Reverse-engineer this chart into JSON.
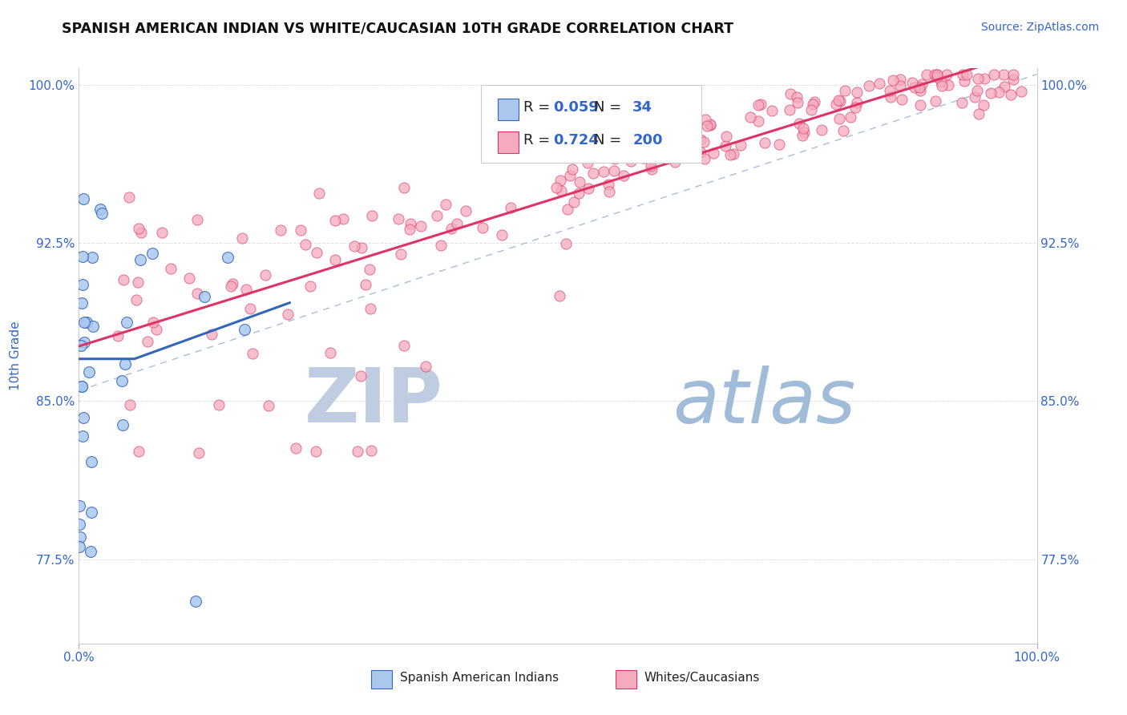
{
  "title": "SPANISH AMERICAN INDIAN VS WHITE/CAUCASIAN 10TH GRADE CORRELATION CHART",
  "source_text": "Source: ZipAtlas.com",
  "ylabel": "10th Grade",
  "legend_label_blue": "Spanish American Indians",
  "legend_label_pink": "Whites/Caucasians",
  "R_blue": 0.059,
  "N_blue": 34,
  "R_pink": 0.724,
  "N_pink": 200,
  "blue_color": "#aac8ee",
  "pink_color": "#f5aabe",
  "trend_blue_color": "#3366bb",
  "trend_pink_color": "#dd3366",
  "dashed_line_color": "#88aacc",
  "xlim": [
    0,
    1
  ],
  "ylim": [
    0.735,
    1.008
  ],
  "yticks": [
    0.775,
    0.85,
    0.925,
    1.0
  ],
  "ytick_labels": [
    "77.5%",
    "85.0%",
    "92.5%",
    "100.0%"
  ],
  "xtick_labels": [
    "0.0%",
    "100.0%"
  ],
  "title_color": "#111111",
  "axis_label_color": "#3366cc",
  "watermark_zip_color": "#c0cce0",
  "watermark_atlas_color": "#a0bcd8",
  "background_color": "#ffffff",
  "grid_color": "#e0e0e0"
}
